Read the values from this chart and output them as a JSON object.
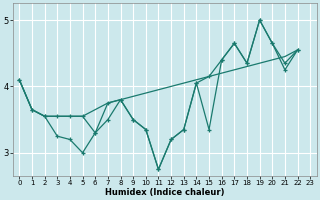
{
  "xlabel": "Humidex (Indice chaleur)",
  "background_color": "#cce8ec",
  "grid_color": "#ffffff",
  "line_color": "#1a7a6e",
  "xlim": [
    -0.5,
    23.5
  ],
  "ylim": [
    2.65,
    5.25
  ],
  "xticks": [
    0,
    1,
    2,
    3,
    4,
    5,
    6,
    7,
    8,
    9,
    10,
    11,
    12,
    13,
    14,
    15,
    16,
    17,
    18,
    19,
    20,
    21,
    22,
    23
  ],
  "yticks": [
    3,
    4,
    5
  ],
  "series1_x": [
    0,
    1,
    2,
    3,
    4,
    5,
    6,
    7,
    8,
    9,
    10,
    11,
    12,
    13,
    14,
    15,
    16,
    17,
    18,
    19,
    20,
    21,
    22
  ],
  "series1_y": [
    4.1,
    3.65,
    3.55,
    3.25,
    3.2,
    3.0,
    3.3,
    3.5,
    3.8,
    3.5,
    3.35,
    2.75,
    3.2,
    3.35,
    4.05,
    3.35,
    4.4,
    4.65,
    4.35,
    5.0,
    4.65,
    4.25,
    4.55
  ],
  "series2_x": [
    0,
    1,
    2,
    5,
    7,
    8,
    10,
    13,
    14,
    15,
    16,
    17,
    18,
    19,
    20,
    21,
    22
  ],
  "series2_y": [
    4.1,
    3.65,
    3.55,
    3.55,
    3.75,
    3.8,
    3.9,
    4.05,
    4.1,
    4.15,
    4.2,
    4.25,
    4.3,
    4.35,
    4.4,
    4.45,
    4.55
  ],
  "series3_x": [
    0,
    1,
    2,
    3,
    4,
    5,
    6,
    7,
    8,
    9,
    10,
    11,
    12,
    13,
    14,
    15,
    16,
    17,
    18,
    19,
    20,
    21,
    22
  ],
  "series3_y": [
    4.1,
    3.65,
    3.55,
    3.55,
    3.55,
    3.55,
    3.3,
    3.75,
    3.8,
    3.5,
    3.35,
    2.75,
    3.2,
    3.35,
    4.05,
    4.15,
    4.4,
    4.65,
    4.35,
    5.0,
    4.65,
    4.35,
    4.55
  ]
}
